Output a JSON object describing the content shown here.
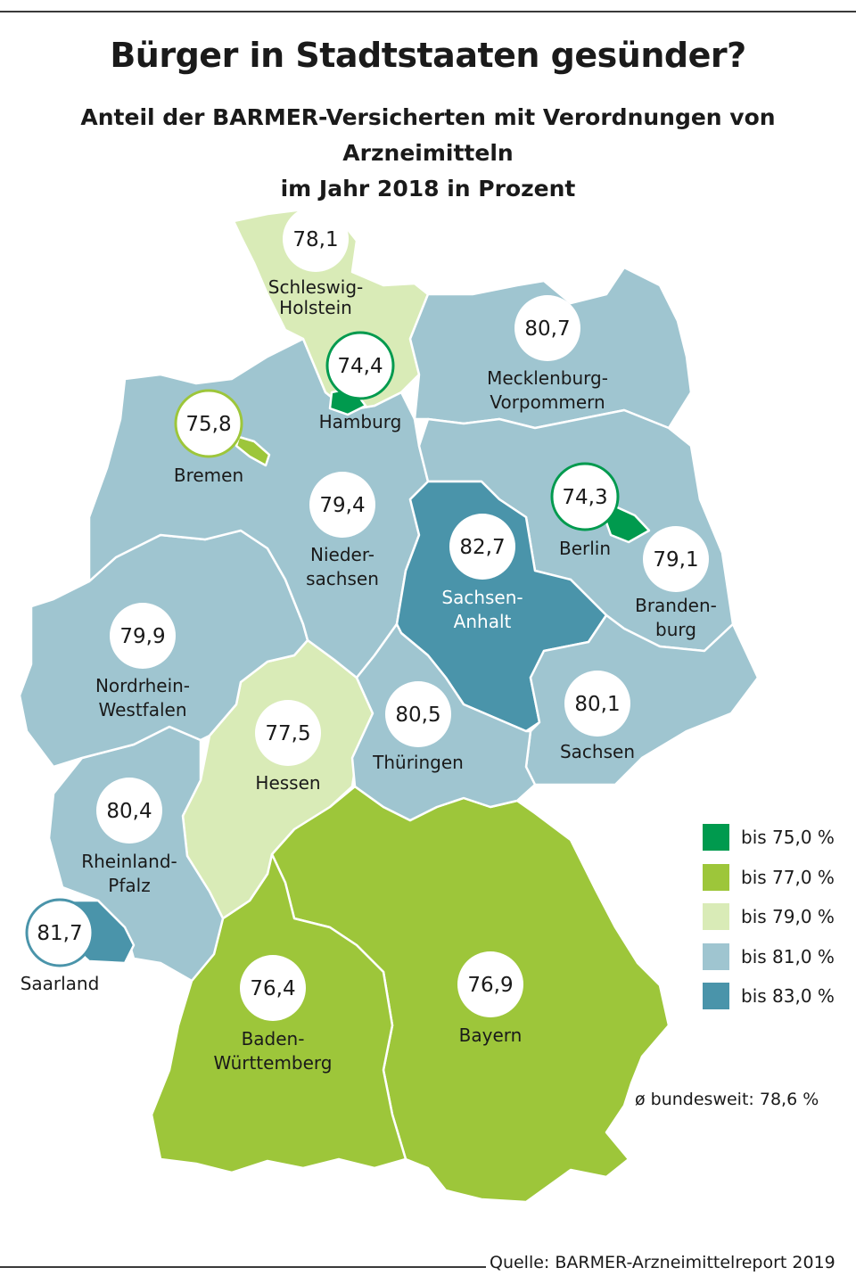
{
  "header": {
    "title": "Bürger in Stadtstaaten gesünder?",
    "subtitle_line1": "Anteil der BARMER-Versicherten mit Verordnungen von Arzneimitteln",
    "subtitle_line2": "im Jahr 2018 in Prozent"
  },
  "colors": {
    "bin1": "#009a4e",
    "bin2": "#9dc63a",
    "bin3": "#d9ebb7",
    "bin4": "#9fc5d0",
    "bin5": "#4a94aa"
  },
  "legend": [
    {
      "label": "bis 75,0 %",
      "color": "#009a4e"
    },
    {
      "label": "bis 77,0 %",
      "color": "#9dc63a"
    },
    {
      "label": "bis 79,0 %",
      "color": "#d9ebb7"
    },
    {
      "label": "bis 81,0 %",
      "color": "#9fc5d0"
    },
    {
      "label": "bis 83,0 %",
      "color": "#4a94aa"
    }
  ],
  "states": {
    "sh": {
      "name1": "Schleswig-",
      "name2": "Holstein",
      "value": "78,1"
    },
    "hh": {
      "name1": "Hamburg",
      "value": "74,4"
    },
    "hb": {
      "name1": "Bremen",
      "value": "75,8"
    },
    "mv": {
      "name1": "Mecklenburg-",
      "name2": "Vorpommern",
      "value": "80,7"
    },
    "ni": {
      "name1": "Nieder-",
      "name2": "sachsen",
      "value": "79,4"
    },
    "be": {
      "name1": "Berlin",
      "value": "74,3"
    },
    "bb": {
      "name1": "Branden-",
      "name2": "burg",
      "value": "79,1"
    },
    "st": {
      "name1": "Sachsen-",
      "name2": "Anhalt",
      "value": "82,7"
    },
    "nw": {
      "name1": "Nordrhein-",
      "name2": "Westfalen",
      "value": "79,9"
    },
    "he": {
      "name1": "Hessen",
      "value": "77,5"
    },
    "th": {
      "name1": "Thüringen",
      "value": "80,5"
    },
    "sn": {
      "name1": "Sachsen",
      "value": "80,1"
    },
    "rp": {
      "name1": "Rheinland-",
      "name2": "Pfalz",
      "value": "80,4"
    },
    "sl": {
      "name1": "Saarland",
      "value": "81,7"
    },
    "bw": {
      "name1": "Baden-",
      "name2": "Württemberg",
      "value": "76,4"
    },
    "by": {
      "name1": "Bayern",
      "value": "76,9"
    }
  },
  "average": "ø bundesweit: 78,6 %",
  "source": "Quelle: BARMER-Arzneimittelreport 2019"
}
